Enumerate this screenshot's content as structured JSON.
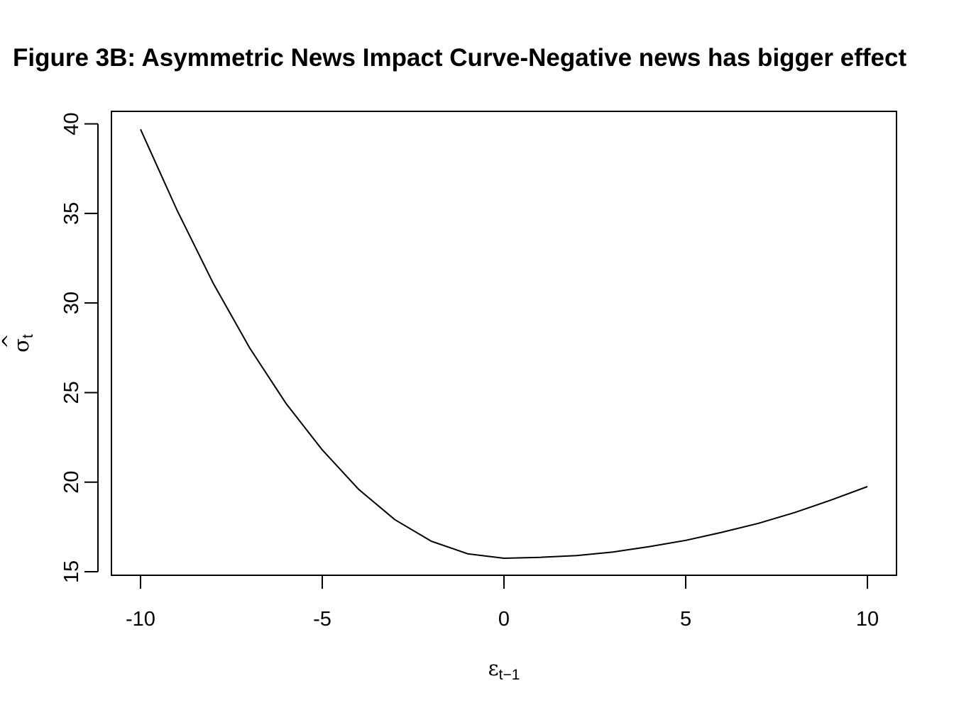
{
  "chart_data": {
    "type": "line",
    "title": "Figure 3B: Asymmetric News Impact Curve-Negative news has bigger effect",
    "xlabel": {
      "base": "ε",
      "sub": "t−1"
    },
    "ylabel": {
      "base": "σ",
      "hat": "^",
      "sub": "t"
    },
    "xlim": [
      -10.8,
      10.8
    ],
    "ylim": [
      14.8,
      40.7
    ],
    "x_ticks": [
      -10,
      -5,
      0,
      5,
      10
    ],
    "x_tick_labels": [
      "-10",
      "-5",
      "0",
      "5",
      "10"
    ],
    "y_ticks": [
      15,
      20,
      25,
      30,
      35,
      40
    ],
    "y_tick_labels": [
      "15",
      "20",
      "25",
      "30",
      "35",
      "40"
    ],
    "grid": false,
    "line_color": "#000000",
    "series": [
      {
        "x": [
          -10,
          -9,
          -8,
          -7,
          -6,
          -5,
          -4,
          -3,
          -2,
          -1,
          0,
          1,
          2,
          3,
          4,
          5,
          6,
          7,
          8,
          9,
          10
        ],
        "y": [
          39.7,
          35.2,
          31.1,
          27.5,
          24.4,
          21.8,
          19.6,
          17.9,
          16.7,
          16.0,
          15.75,
          15.8,
          15.9,
          16.1,
          16.4,
          16.75,
          17.2,
          17.7,
          18.3,
          19.0,
          19.75
        ]
      }
    ]
  }
}
